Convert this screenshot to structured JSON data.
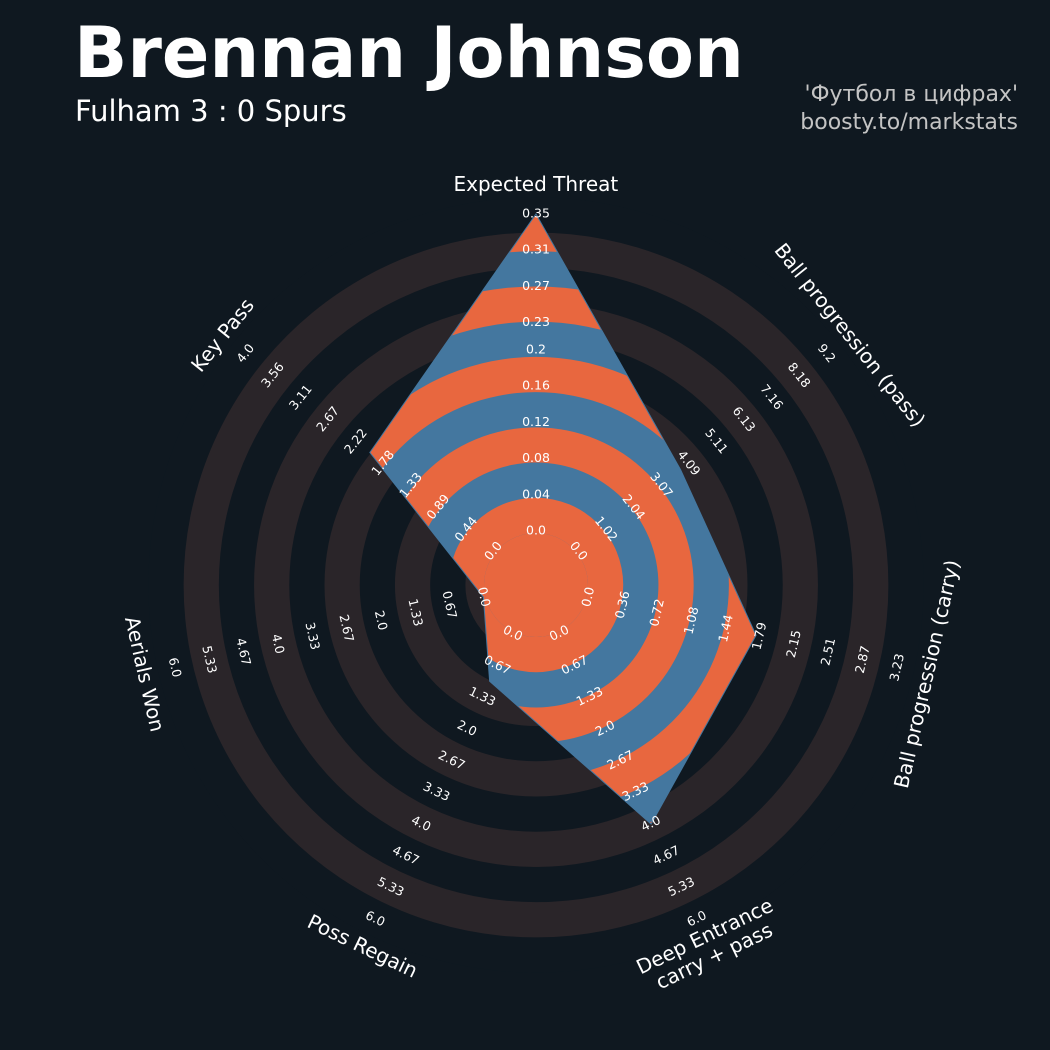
{
  "chart_data": {
    "type": "radar",
    "title": "Brennan Johnson",
    "subtitle": "Fulham 3 : 0 Spurs",
    "credits": [
      "'Футбол в цифрах'",
      "boosty.to/markstats"
    ],
    "colors": {
      "fill": "#44779f",
      "alt": "#e8673f",
      "ring": "#2a2529",
      "background": "#0f1820"
    },
    "axes": [
      {
        "name": "Expected Threat",
        "value": 0.35,
        "lim": [
          0,
          0.35
        ],
        "ticks": [
          {
            "value": 0,
            "label": "0.0"
          },
          0.04,
          0.08,
          0.12,
          0.16,
          0.2,
          0.23,
          0.27,
          0.31,
          0.35
        ]
      },
      {
        "name": "Ball progression (pass)",
        "value": 3.8,
        "lim": [
          0,
          9.2
        ],
        "ticks": [
          {
            "value": 0,
            "label": "0.0"
          },
          1.02,
          2.04,
          3.07,
          4.09,
          5.11,
          6.13,
          7.16,
          8.18,
          9.2
        ]
      },
      {
        "name": "Ball progression (carry)",
        "value": 1.75,
        "lim": [
          0,
          3.23
        ],
        "ticks": [
          {
            "value": 0,
            "label": "0.0"
          },
          0.36,
          0.72,
          1.08,
          1.44,
          1.79,
          2.15,
          2.51,
          2.87,
          3.23
        ]
      },
      {
        "name": "Deep Entrance\ncarry + pass",
        "value": 4,
        "lim": [
          0,
          6
        ],
        "ticks": [
          {
            "value": 0,
            "label": "0.0"
          },
          0.67,
          1.33,
          {
            "value": 2,
            "label": "2.0"
          },
          2.67,
          3.33,
          {
            "value": 4,
            "label": "4.0"
          },
          4.67,
          5.33,
          {
            "value": 6,
            "label": "6.0"
          }
        ]
      },
      {
        "name": "Poss Regain",
        "value": 1,
        "lim": [
          0,
          6
        ],
        "ticks": [
          {
            "value": 0,
            "label": "0.0"
          },
          0.67,
          1.33,
          {
            "value": 2,
            "label": "2.0"
          },
          2.67,
          3.33,
          {
            "value": 4,
            "label": "4.0"
          },
          4.67,
          5.33,
          {
            "value": 6,
            "label": "6.0"
          }
        ]
      },
      {
        "name": "Aerials Won",
        "value": 0,
        "lim": [
          0,
          6
        ],
        "ticks": [
          {
            "value": 0,
            "label": "0.0"
          },
          0.67,
          1.33,
          {
            "value": 2,
            "label": "2.0"
          },
          2.67,
          3.33,
          {
            "value": 4,
            "label": "4.0"
          },
          4.67,
          5.33,
          {
            "value": 6,
            "label": "6.0"
          }
        ]
      },
      {
        "name": "Key Pass",
        "value": 2,
        "lim": [
          0,
          4
        ],
        "ticks": [
          {
            "value": 0,
            "label": "0.0"
          },
          0.44,
          0.89,
          1.33,
          1.78,
          2.22,
          2.67,
          3.11,
          3.56,
          {
            "value": 4,
            "label": "4.0"
          }
        ]
      }
    ]
  }
}
